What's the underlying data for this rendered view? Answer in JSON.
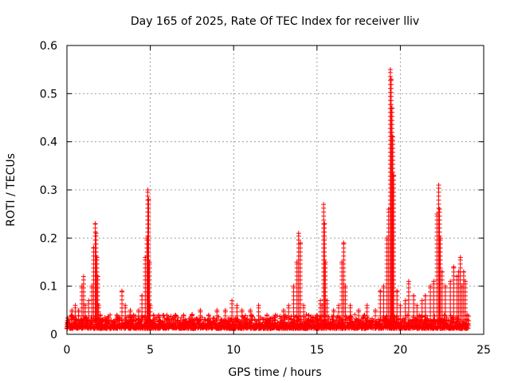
{
  "chart_data": {
    "type": "scatter",
    "title": "Day 165 of 2025, Rate Of TEC Index for receiver lliv",
    "xlabel": "GPS time / hours",
    "ylabel": "ROTI / TECUs",
    "xlim": [
      0,
      25
    ],
    "ylim": [
      0,
      0.6
    ],
    "xticks": [
      0,
      5,
      10,
      15,
      20,
      25
    ],
    "yticks": [
      0,
      0.1,
      0.2,
      0.3,
      0.4,
      0.5,
      0.6
    ],
    "xtick_labels": [
      "0",
      "5",
      "10",
      "15",
      "20",
      "25"
    ],
    "ytick_labels": [
      "0",
      "0.1",
      "0.2",
      "0.3",
      "0.4",
      "0.5",
      "0.6"
    ],
    "grid": true,
    "marker": "+",
    "color": "#ff0000",
    "series": [
      {
        "x": [
          0.1,
          0.3,
          0.5,
          0.7,
          0.9,
          1.0,
          1.1,
          1.3,
          1.5,
          1.6,
          1.7,
          1.75,
          1.8,
          1.85,
          1.9,
          2.0,
          2.2,
          2.5,
          3.0,
          3.3,
          3.5,
          3.8,
          4.0,
          4.3,
          4.5,
          4.7,
          4.8,
          4.85,
          4.9,
          4.95,
          5.0,
          5.2,
          5.5,
          6.0,
          6.5,
          7.0,
          7.5,
          8.0,
          8.5,
          9.0,
          9.5,
          9.9,
          10.2,
          10.5,
          11.0,
          11.5,
          12.0,
          12.5,
          13.0,
          13.3,
          13.6,
          13.8,
          13.9,
          14.0,
          14.2,
          14.5,
          15.0,
          15.2,
          15.3,
          15.4,
          15.45,
          15.5,
          15.6,
          16.0,
          16.3,
          16.5,
          16.6,
          16.7,
          17.0,
          17.5,
          18.0,
          18.5,
          18.8,
          19.0,
          19.2,
          19.3,
          19.4,
          19.45,
          19.5,
          19.55,
          19.6,
          19.8,
          20.0,
          20.3,
          20.5,
          20.8,
          21.0,
          21.3,
          21.5,
          21.8,
          22.0,
          22.2,
          22.3,
          22.35,
          22.4,
          22.5,
          22.7,
          23.0,
          23.2,
          23.4,
          23.5,
          23.6,
          23.7,
          23.8,
          23.9,
          24.0
        ],
        "y": [
          0.03,
          0.05,
          0.06,
          0.05,
          0.1,
          0.12,
          0.06,
          0.07,
          0.1,
          0.18,
          0.23,
          0.21,
          0.16,
          0.12,
          0.06,
          0.04,
          0.03,
          0.03,
          0.04,
          0.09,
          0.06,
          0.05,
          0.04,
          0.05,
          0.08,
          0.16,
          0.2,
          0.3,
          0.28,
          0.15,
          0.06,
          0.04,
          0.04,
          0.04,
          0.04,
          0.04,
          0.04,
          0.05,
          0.04,
          0.05,
          0.05,
          0.07,
          0.06,
          0.05,
          0.05,
          0.06,
          0.04,
          0.04,
          0.05,
          0.06,
          0.1,
          0.15,
          0.21,
          0.19,
          0.06,
          0.04,
          0.04,
          0.07,
          0.06,
          0.27,
          0.23,
          0.15,
          0.07,
          0.05,
          0.06,
          0.15,
          0.19,
          0.1,
          0.06,
          0.05,
          0.06,
          0.05,
          0.09,
          0.1,
          0.2,
          0.26,
          0.55,
          0.53,
          0.47,
          0.41,
          0.33,
          0.09,
          0.06,
          0.07,
          0.11,
          0.08,
          0.06,
          0.07,
          0.08,
          0.1,
          0.11,
          0.25,
          0.31,
          0.26,
          0.2,
          0.13,
          0.1,
          0.11,
          0.14,
          0.12,
          0.13,
          0.16,
          0.1,
          0.13,
          0.11,
          0.04
        ]
      }
    ]
  }
}
